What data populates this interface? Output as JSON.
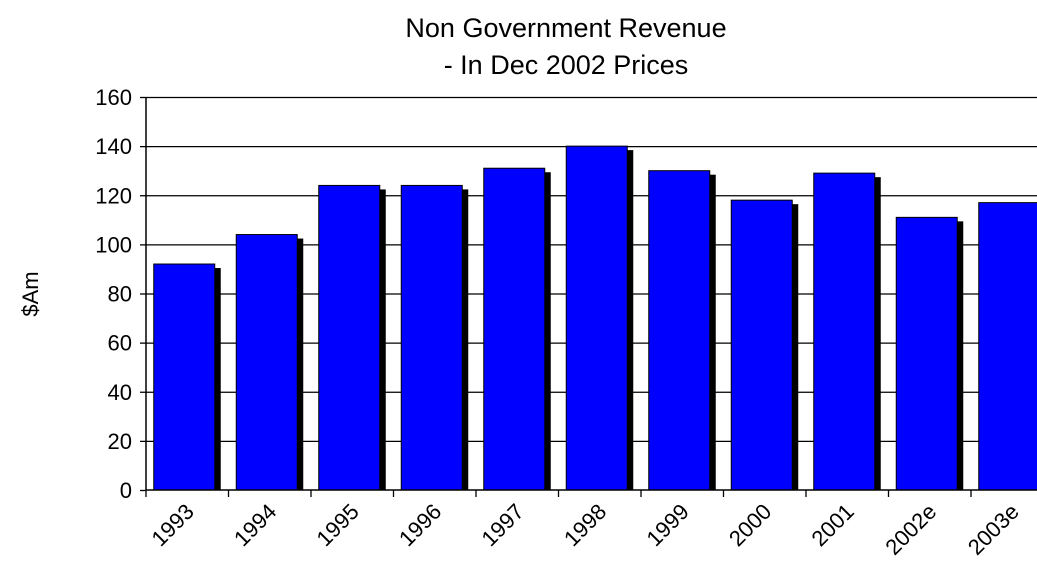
{
  "chart_data": {
    "type": "bar",
    "title": "Non Government Revenue",
    "subtitle": "- In Dec 2002 Prices",
    "xlabel": "",
    "ylabel": "$Am",
    "categories": [
      "1993",
      "1994",
      "1995",
      "1996",
      "1997",
      "1998",
      "1999",
      "2000",
      "2001",
      "2002e",
      "2003e"
    ],
    "series": [
      {
        "values": [
          92,
          104,
          124,
          124,
          131,
          140,
          130,
          118,
          129,
          111,
          117
        ]
      }
    ],
    "ylim": [
      0,
      160
    ],
    "yticks": [
      "0",
      "20",
      "40",
      "60",
      "80",
      "100",
      "120",
      "140",
      "160"
    ],
    "grid": true,
    "legend": "none",
    "colors": {
      "bar": "#0000FF",
      "shadow": "#000000",
      "grid": "#000000",
      "axis": "#000000"
    }
  }
}
